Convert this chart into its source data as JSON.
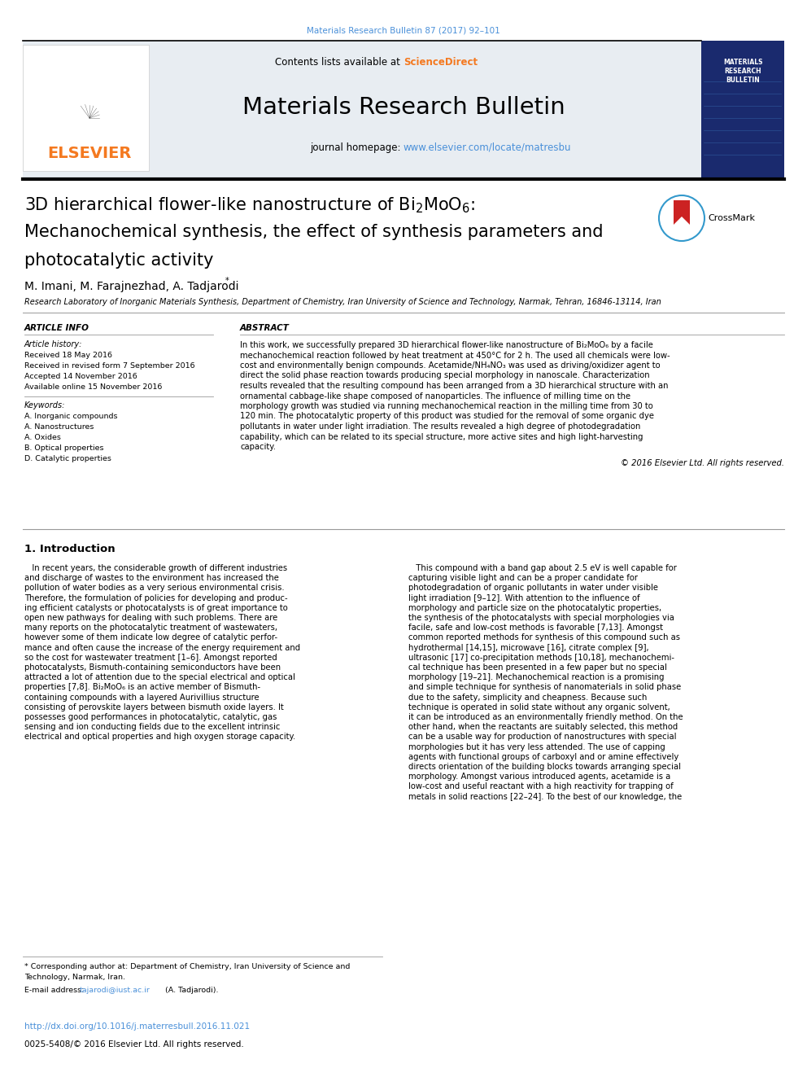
{
  "page_width": 9.92,
  "page_height": 13.23,
  "bg_color": "#ffffff",
  "journal_ref": "Materials Research Bulletin 87 (2017) 92–101",
  "journal_ref_color": "#4a90d9",
  "header_bg": "#e8edf2",
  "header_title": "Materials Research Bulletin",
  "header_contents": "Contents lists available at ",
  "sciencedirect": "ScienceDirect",
  "sciencedirect_color": "#f47920",
  "journal_homepage_text": "journal homepage: ",
  "journal_url": "www.elsevier.com/locate/matresbu",
  "journal_url_color": "#4a90d9",
  "elsevier_color": "#f47920",
  "article_title_line1": "3D hierarchical flower-like nanostructure of Bi$_2$MoO$_6$:",
  "article_title_line2": "Mechanochemical synthesis, the effect of synthesis parameters and",
  "article_title_line3": "photocatalytic activity",
  "authors": "M. Imani, M. Farajnezhad, A. Tadjarodi",
  "affiliation": "Research Laboratory of Inorganic Materials Synthesis, Department of Chemistry, Iran University of Science and Technology, Narmak, Tehran, 16846-13114, Iran",
  "section_article_info": "ARTICLE INFO",
  "article_history_label": "Article history:",
  "history_items": [
    "Received 18 May 2016",
    "Received in revised form 7 September 2016",
    "Accepted 14 November 2016",
    "Available online 15 November 2016"
  ],
  "keywords_label": "Keywords:",
  "keywords_items": [
    "A. Inorganic compounds",
    "A. Nanostructures",
    "A. Oxides",
    "B. Optical properties",
    "D. Catalytic properties"
  ],
  "section_abstract": "ABSTRACT",
  "abstract_lines": [
    "In this work, we successfully prepared 3D hierarchical flower-like nanostructure of Bi₂MoO₆ by a facile",
    "mechanochemical reaction followed by heat treatment at 450°C for 2 h. The used all chemicals were low-",
    "cost and environmentally benign compounds. Acetamide/NH₄NO₃ was used as driving/oxidizer agent to",
    "direct the solid phase reaction towards producing special morphology in nanoscale. Characterization",
    "results revealed that the resulting compound has been arranged from a 3D hierarchical structure with an",
    "ornamental cabbage-like shape composed of nanoparticles. The influence of milling time on the",
    "morphology growth was studied via running mechanochemical reaction in the milling time from 30 to",
    "120 min. The photocatalytic property of this product was studied for the removal of some organic dye",
    "pollutants in water under light irradiation. The results revealed a high degree of photodegradation",
    "capability, which can be related to its special structure, more active sites and high light-harvesting",
    "capacity."
  ],
  "copyright": "© 2016 Elsevier Ltd. All rights reserved.",
  "section1_title": "1. Introduction",
  "intro_col1_lines": [
    "   In recent years, the considerable growth of different industries",
    "and discharge of wastes to the environment has increased the",
    "pollution of water bodies as a very serious environmental crisis.",
    "Therefore, the formulation of policies for developing and produc-",
    "ing efficient catalysts or photocatalysts is of great importance to",
    "open new pathways for dealing with such problems. There are",
    "many reports on the photocatalytic treatment of wastewaters,",
    "however some of them indicate low degree of catalytic perfor-",
    "mance and often cause the increase of the energy requirement and",
    "so the cost for wastewater treatment [1–6]. Amongst reported",
    "photocatalysts, Bismuth-containing semiconductors have been",
    "attracted a lot of attention due to the special electrical and optical",
    "properties [7,8]. Bi₂MoO₆ is an active member of Bismuth-",
    "containing compounds with a layered Aurivillius structure",
    "consisting of perovskite layers between bismuth oxide layers. It",
    "possesses good performances in photocatalytic, catalytic, gas",
    "sensing and ion conducting fields due to the excellent intrinsic",
    "electrical and optical properties and high oxygen storage capacity."
  ],
  "intro_col2_lines": [
    "   This compound with a band gap about 2.5 eV is well capable for",
    "capturing visible light and can be a proper candidate for",
    "photodegradation of organic pollutants in water under visible",
    "light irradiation [9–12]. With attention to the influence of",
    "morphology and particle size on the photocatalytic properties,",
    "the synthesis of the photocatalysts with special morphologies via",
    "facile, safe and low-cost methods is favorable [7,13]. Amongst",
    "common reported methods for synthesis of this compound such as",
    "hydrothermal [14,15], microwave [16], citrate complex [9],",
    "ultrasonic [17] co-precipitation methods [10,18], mechanochemi-",
    "cal technique has been presented in a few paper but no special",
    "morphology [19–21]. Mechanochemical reaction is a promising",
    "and simple technique for synthesis of nanomaterials in solid phase",
    "due to the safety, simplicity and cheapness. Because such",
    "technique is operated in solid state without any organic solvent,",
    "it can be introduced as an environmentally friendly method. On the",
    "other hand, when the reactants are suitably selected, this method",
    "can be a usable way for production of nanostructures with special",
    "morphologies but it has very less attended. The use of capping",
    "agents with functional groups of carboxyl and or amine effectively",
    "directs orientation of the building blocks towards arranging special",
    "morphology. Amongst various introduced agents, acetamide is a",
    "low-cost and useful reactant with a high reactivity for trapping of",
    "metals in solid reactions [22–24]. To the best of our knowledge, the"
  ],
  "footnote_line1": "* Corresponding author at: Department of Chemistry, Iran University of Science and",
  "footnote_line2": "Technology, Narmak, Iran.",
  "footnote_email_label": "E-mail address: ",
  "footnote_email": "tajarodi@iust.ac.ir",
  "footnote_name": " (A. Tadjarodi).",
  "doi_text": "http://dx.doi.org/10.1016/j.materresbull.2016.11.021",
  "doi_color": "#4a90d9",
  "issn_text": "0025-5408/© 2016 Elsevier Ltd. All rights reserved.",
  "navy_color": "#1a2a6e",
  "text_color": "#000000",
  "link_color": "#4a90d9",
  "gray_line": "#999999",
  "cover_text": "MATERIALS\nRESEARCH\nBULLETIN"
}
